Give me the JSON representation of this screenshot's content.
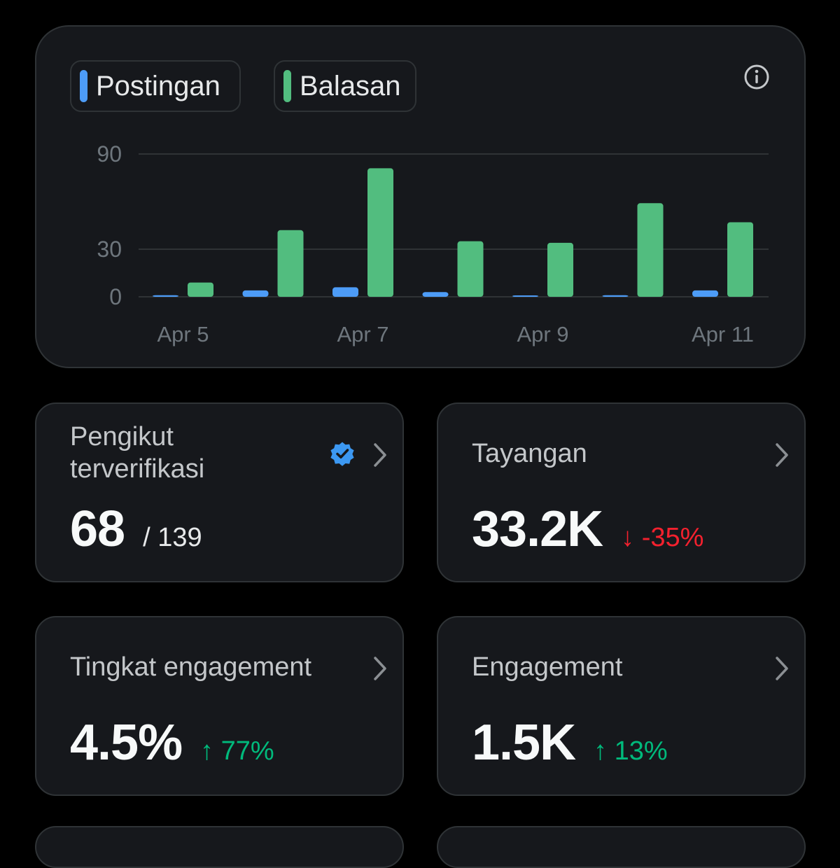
{
  "legend": {
    "posts_label": "Postingan",
    "replies_label": "Balasan"
  },
  "colors": {
    "posts": "#4d9cf7",
    "replies": "#52bd7f",
    "positive": "#00ba7c",
    "negative": "#f4212e",
    "verified": "#3c98f2"
  },
  "icons": {
    "info": "info-icon",
    "chevron": "chevron-right-icon",
    "verified": "verified-badge-icon"
  },
  "chart_data": {
    "type": "bar",
    "categories": [
      "Apr 5",
      "Apr 6",
      "Apr 7",
      "Apr 8",
      "Apr 9",
      "Apr 10",
      "Apr 11"
    ],
    "x_tick_labels": [
      "Apr 5",
      "Apr 7",
      "Apr 9",
      "Apr 11"
    ],
    "series": [
      {
        "name": "Postingan",
        "values": [
          1,
          4,
          6,
          3,
          0,
          1,
          4
        ]
      },
      {
        "name": "Balasan",
        "values": [
          9,
          42,
          81,
          35,
          34,
          59,
          47
        ]
      }
    ],
    "y_ticks": [
      0,
      30,
      90
    ],
    "ylim": [
      0,
      90
    ],
    "grid": true
  },
  "stats": [
    {
      "title": "Pengikut terverifikasi",
      "value": "68",
      "sub": "/ 139",
      "verified": true
    },
    {
      "title": "Tayangan",
      "value": "33.2K",
      "delta": "↓ -35%",
      "trend": "down"
    },
    {
      "title": "Tingkat engagement",
      "value": "4.5%",
      "delta": "↑ 77%",
      "trend": "up"
    },
    {
      "title": "Engagement",
      "value": "1.5K",
      "delta": "↑ 13%",
      "trend": "up"
    }
  ]
}
